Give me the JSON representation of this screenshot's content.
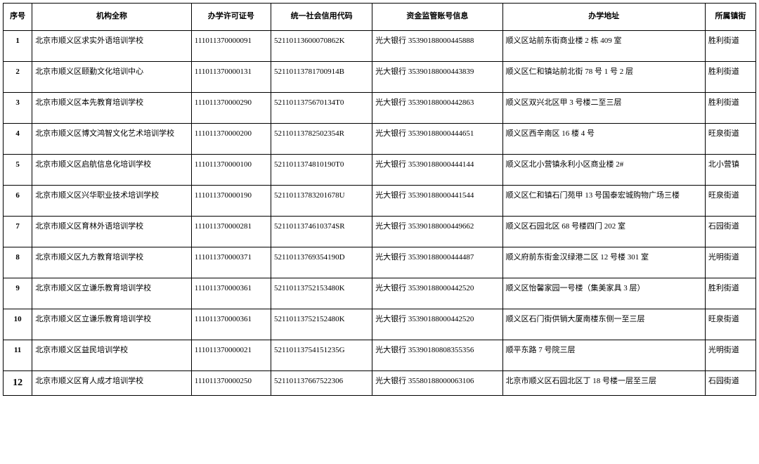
{
  "table": {
    "columns": [
      {
        "key": "seq",
        "label": "序号",
        "class": "col-seq"
      },
      {
        "key": "name",
        "label": "机构全称",
        "class": "col-name"
      },
      {
        "key": "perm",
        "label": "办学许可证号",
        "class": "col-perm"
      },
      {
        "key": "code",
        "label": "统一社会信用代码",
        "class": "col-code"
      },
      {
        "key": "acct",
        "label": "资金监管账号信息",
        "class": "col-acct"
      },
      {
        "key": "addr",
        "label": "办学地址",
        "class": "col-addr"
      },
      {
        "key": "dist",
        "label": "所属镇街",
        "class": "col-dist"
      }
    ],
    "rows": [
      {
        "seq": "1",
        "name": "北京市顺义区求实外语培训学校",
        "perm": "111011370000091",
        "code": "52110113600070862K",
        "acct": "光大银行 35390188000445888",
        "addr": "顺义区站前东街商业楼 2 栋 409 室",
        "dist": "胜利街道",
        "tall": true
      },
      {
        "seq": "2",
        "name": "北京市顺义区颐勤文化培训中心",
        "perm": "111011370000131",
        "code": "52110113781700914B",
        "acct": "光大银行 35390188000443839",
        "addr": "顺义区仁和镇站前北街 78 号 1 号 2 层",
        "dist": "胜利街道",
        "tall": true
      },
      {
        "seq": "3",
        "name": "北京市顺义区本先教育培训学校",
        "perm": "111011370000290",
        "code": "5211011375670134T0",
        "acct": "光大银行 35390188000442863",
        "addr": "顺义区双兴北区甲 3 号楼二至三层",
        "dist": "胜利街道",
        "tall": true
      },
      {
        "seq": "4",
        "name": "北京市顺义区博文鸿智文化艺术培训学校",
        "perm": "111011370000200",
        "code": "52110113782502354R",
        "acct": "光大银行 35390188000444651",
        "addr": "顺义区西辛南区 16 楼 4 号",
        "dist": "旺泉街道",
        "tall": true
      },
      {
        "seq": "5",
        "name": "北京市顺义区启航信息化培训学校",
        "perm": "111011370000100",
        "code": "5211011374810190T0",
        "acct": "光大银行 35390188000444144",
        "addr": "顺义区北小营镇永利小区商业楼 2#",
        "dist": "北小营镇",
        "tall": true
      },
      {
        "seq": "6",
        "name": "北京市顺义区兴华职业技术培训学校",
        "perm": "111011370000190",
        "code": "52110113783201678U",
        "acct": "光大银行 35390188000441544",
        "addr": "顺义区仁和镇石门苑甲 13 号国泰宏城购物广场三楼",
        "dist": "旺泉街道",
        "tall": true
      },
      {
        "seq": "7",
        "name": "北京市顺义区育林外语培训学校",
        "perm": "111011370000281",
        "code": "5211011374610374SR",
        "acct": "光大银行 35390188000449662",
        "addr": "顺义区石园北区 68 号楼四门 202 室",
        "dist": "石园街道",
        "tall": true
      },
      {
        "seq": "8",
        "name": "北京市顺义区九方教育培训学校",
        "perm": "111011370000371",
        "code": "52110113769354190D",
        "acct": "光大银行 35390188000444487",
        "addr": "顺义府前东街金汉绿港二区 12 号楼 301 室",
        "dist": "光明街道",
        "tall": true
      },
      {
        "seq": "9",
        "name": "北京市顺义区立谦乐教育培训学校",
        "perm": "111011370000361",
        "code": "52110113752153480K",
        "acct": "光大银行 35390188000442520",
        "addr": "顺义区怡馨家园一号楼（集美家具 3 层）",
        "dist": "胜利街道",
        "tall": true
      },
      {
        "seq": "10",
        "name": "北京市顺义区立谦乐教育培训学校",
        "perm": "111011370000361",
        "code": "52110113752152480K",
        "acct": "光大银行 35390188000442520",
        "addr": "顺义区石门街供销大厦南楼东侧一至三层",
        "dist": "旺泉街道",
        "tall": true
      },
      {
        "seq": "11",
        "name": "北京市顺义区益民培训学校",
        "perm": "111011370000021",
        "code": "52110113754151235G",
        "acct": "光大银行 35390180808355356",
        "addr": "顺平东路 7 号院三层",
        "dist": "光明街道",
        "tall": true
      },
      {
        "seq": "12",
        "name": "北京市顺义区育人成才培训学校",
        "perm": "111011370000250",
        "code": "521101137667522306",
        "acct": "光大银行 35580188000063106",
        "addr": "北京市顺义区石园北区丁 18 号楼一层至三层",
        "dist": "石园街道",
        "tall": false,
        "last": true
      }
    ]
  }
}
